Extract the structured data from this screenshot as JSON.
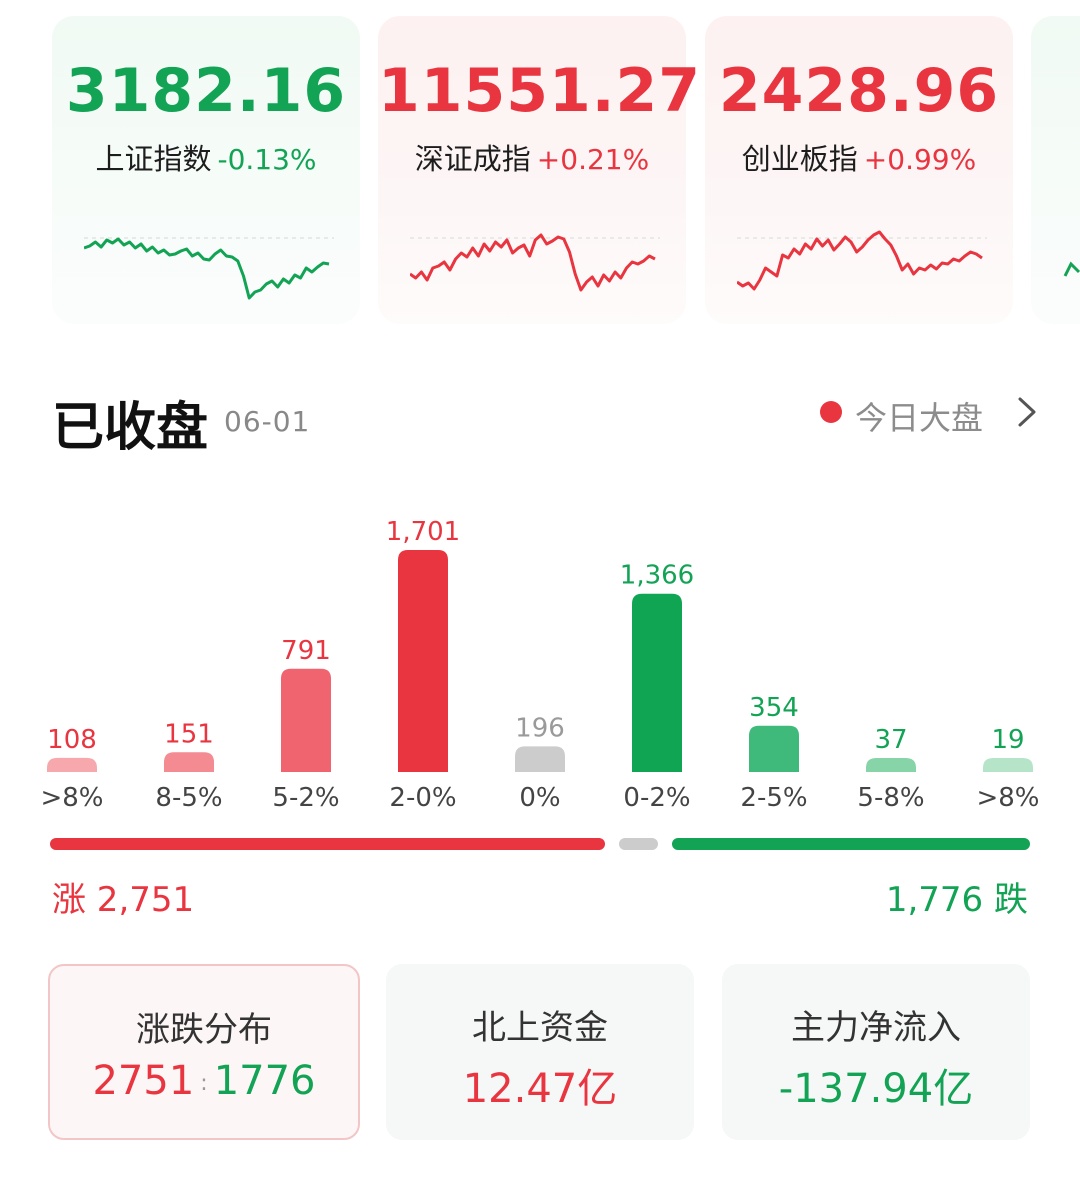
{
  "indices": [
    {
      "value": "3182.16",
      "name": "上证指数",
      "change": "-0.13%",
      "trend": "down",
      "spark": [
        44,
        42,
        38,
        43,
        36,
        39,
        35,
        41,
        38,
        44,
        40,
        47,
        43,
        49,
        46,
        51,
        50,
        47,
        45,
        52,
        49,
        55,
        56,
        50,
        46,
        52,
        53,
        57,
        72,
        94,
        88,
        86,
        80,
        77,
        83,
        75,
        79,
        71,
        74,
        64,
        68,
        63,
        59,
        60
      ]
    },
    {
      "value": "11551.27",
      "name": "深证成指",
      "change": "+0.21%",
      "trend": "up",
      "spark": [
        70,
        74,
        68,
        76,
        64,
        62,
        58,
        66,
        55,
        49,
        53,
        44,
        52,
        40,
        47,
        38,
        43,
        36,
        49,
        44,
        41,
        52,
        36,
        31,
        40,
        37,
        33,
        35,
        48,
        70,
        86,
        78,
        73,
        82,
        71,
        77,
        68,
        74,
        64,
        58,
        60,
        57,
        52,
        55
      ]
    },
    {
      "value": "2428.96",
      "name": "创业板指",
      "change": "+0.99%",
      "trend": "up",
      "spark": [
        78,
        82,
        79,
        85,
        76,
        64,
        68,
        72,
        51,
        54,
        45,
        50,
        40,
        45,
        35,
        42,
        36,
        46,
        40,
        33,
        38,
        48,
        43,
        36,
        31,
        28,
        35,
        41,
        52,
        66,
        60,
        70,
        64,
        66,
        61,
        65,
        59,
        60,
        55,
        57,
        52,
        48,
        50,
        54
      ]
    }
  ],
  "section": {
    "title": "已收盘",
    "date": "06-01",
    "live_label": "今日大盘"
  },
  "chart_data": {
    "type": "bar",
    "categories": [
      ">8%",
      "8-5%",
      "5-2%",
      "2-0%",
      "0%",
      "0-2%",
      "2-5%",
      "5-8%",
      ">8%"
    ],
    "values": [
      108,
      151,
      791,
      1701,
      196,
      1366,
      354,
      37,
      19
    ],
    "value_labels": [
      "108",
      "151",
      "791",
      "1,701",
      "196",
      "1,366",
      "354",
      "37",
      "19"
    ],
    "colors": [
      "#f7a8ad",
      "#f48a92",
      "#f06470",
      "#e8353f",
      "#cccccc",
      "#0fa552",
      "#3fba7a",
      "#86d4a8",
      "#b6e4c9"
    ],
    "label_colors": [
      "#e8353f",
      "#e8353f",
      "#e8353f",
      "#e8353f",
      "#9a9a9a",
      "#13a355",
      "#13a355",
      "#13a355",
      "#13a355"
    ],
    "ylim": [
      0,
      1701
    ]
  },
  "summary": {
    "rise_label": "涨 2,751",
    "fall_label": "1,776 跌",
    "rise_count": 2751,
    "flat_count": 196,
    "fall_count": 1776
  },
  "stats": [
    {
      "title": "涨跌分布",
      "value_up": "2751",
      "separator": ":",
      "value_down": "1776"
    },
    {
      "title": "北上资金",
      "value": "12.47亿"
    },
    {
      "title": "主力净流入",
      "value": "-137.94亿"
    }
  ],
  "colors": {
    "up": "#e8353f",
    "down": "#13a355",
    "flat": "#cccccc"
  }
}
